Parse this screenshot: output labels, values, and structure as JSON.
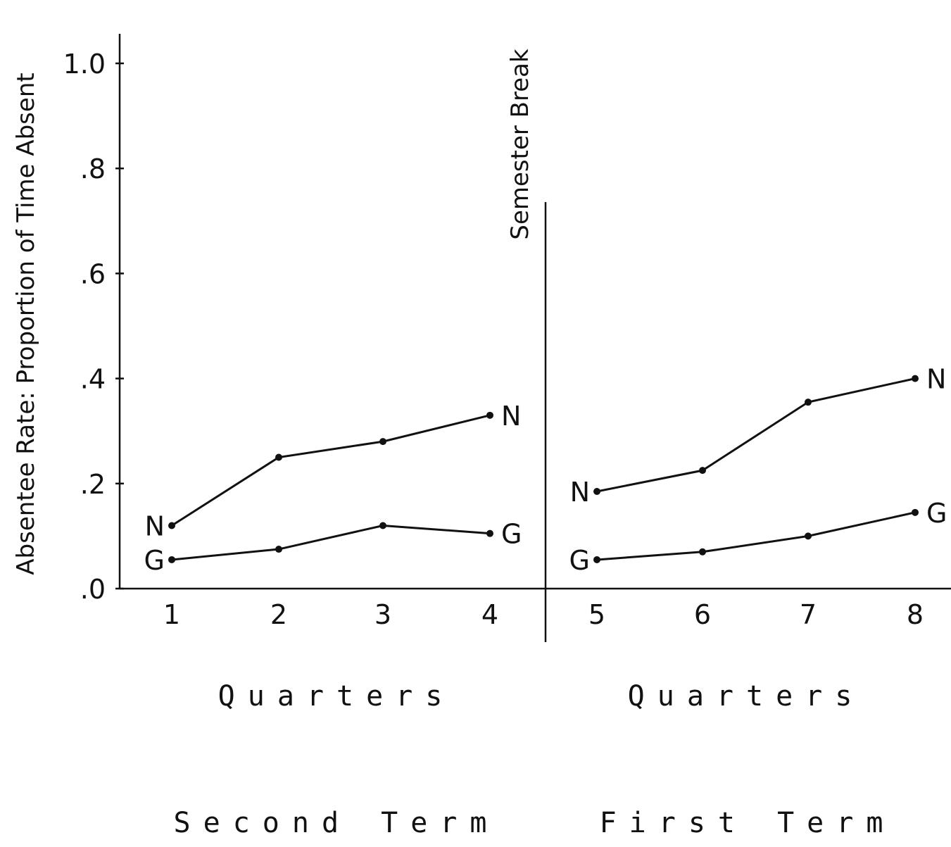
{
  "chart_data": {
    "type": "line",
    "ylabel": "Absentee Rate:  Proportion of Time Absent",
    "ylim": [
      0,
      1.0
    ],
    "y_ticks": [
      {
        "value": 0.0,
        "label": ".0"
      },
      {
        "value": 0.2,
        "label": ".2"
      },
      {
        "value": 0.4,
        "label": ".4"
      },
      {
        "value": 0.6,
        "label": ".6"
      },
      {
        "value": 0.8,
        "label": ".8"
      },
      {
        "value": 1.0,
        "label": "1.0"
      }
    ],
    "divider_label": "Semester Break",
    "panels": [
      {
        "xlabel": "Quarters",
        "term_label": "Second Term",
        "x": [
          "1",
          "2",
          "3",
          "4"
        ],
        "series": [
          {
            "name": "N",
            "values": [
              0.12,
              0.25,
              0.28,
              0.33
            ]
          },
          {
            "name": "G",
            "values": [
              0.055,
              0.075,
              0.12,
              0.105
            ]
          }
        ]
      },
      {
        "xlabel": "Quarters",
        "term_label": "First Term",
        "x": [
          "5",
          "6",
          "7",
          "8"
        ],
        "series": [
          {
            "name": "N",
            "values": [
              0.185,
              0.225,
              0.355,
              0.4
            ]
          },
          {
            "name": "G",
            "values": [
              0.055,
              0.07,
              0.1,
              0.145
            ]
          }
        ]
      }
    ]
  }
}
